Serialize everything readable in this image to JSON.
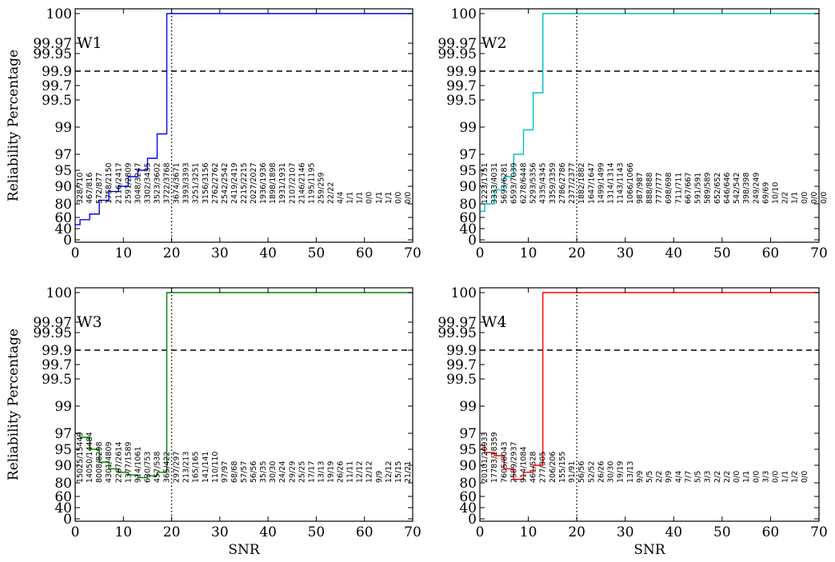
{
  "chart_data": [
    {
      "type": "line",
      "panel": "W1",
      "color": "#0000ff",
      "xlabel": "",
      "ylabel": "Reliability Percentage",
      "xlim": [
        0,
        70
      ],
      "y_scale": "reliability (nonlinear)",
      "x_ticks": [
        "0",
        "10",
        "20",
        "30",
        "40",
        "50",
        "60",
        "70"
      ],
      "y_ticks": [
        "0",
        "40",
        "60",
        "80",
        "90",
        "95",
        "97",
        "99",
        "99.5",
        "99.7",
        "99.9",
        "99.95",
        "99.97",
        "100"
      ],
      "threshold_y": 99.9,
      "threshold_x": 20,
      "x": [
        0,
        1,
        3,
        5,
        7,
        9,
        11,
        13,
        15,
        17,
        19
      ],
      "y": [
        47,
        56,
        65,
        82,
        87,
        90,
        93,
        95,
        96.5,
        98.5,
        100
      ],
      "bin_counts": [
        "328/710",
        "467/816",
        "572/877",
        "1758/2150",
        "2116/2417",
        "2591/2809",
        "3048/3247",
        "3302/3435",
        "3523/3602",
        "3722/3768",
        "3674/3671",
        "3393/3393",
        "3251/3251",
        "3156/3156",
        "2762/2762",
        "2542/2542",
        "2419/2419",
        "2215/2215",
        "2027/2027",
        "1936/1936",
        "1898/1898",
        "1931/1931",
        "2107/2107",
        "2146/2146",
        "1195/1195",
        "259/259",
        "22/22",
        "4/4",
        "1/1",
        "1/1",
        "0/0",
        "1/1",
        "1/1",
        "0/0",
        "0/0"
      ]
    },
    {
      "type": "line",
      "panel": "W2",
      "color": "#00bfbf",
      "xlabel": "",
      "ylabel": "",
      "xlim": [
        0,
        70
      ],
      "y_scale": "reliability (nonlinear)",
      "x_ticks": [
        "0",
        "10",
        "20",
        "30",
        "40",
        "50",
        "60",
        "70"
      ],
      "y_ticks": [
        "0",
        "40",
        "60",
        "80",
        "90",
        "95",
        "97",
        "99",
        "99.5",
        "99.7",
        "99.9",
        "99.95",
        "99.97",
        "100"
      ],
      "threshold_y": 99.9,
      "threshold_x": 20,
      "x": [
        0,
        1,
        3,
        5,
        7,
        9,
        11,
        13
      ],
      "y": [
        69,
        80,
        88,
        93,
        97,
        98.8,
        99.6,
        100
      ],
      "bin_counts": [
        "1223/1751",
        "3333/4031",
        "5693/6281",
        "6593/7039",
        "6278/6448",
        "5293/5356",
        "4335/4345",
        "3359/3359",
        "2786/2786",
        "2377/2377",
        "1882/1882",
        "1647/1647",
        "1499/1499",
        "1314/1314",
        "1143/1143",
        "1066/1066",
        "987/987",
        "888/888",
        "777/777",
        "698/698",
        "711/711",
        "667/667",
        "591/591",
        "589/589",
        "652/652",
        "646/646",
        "542/542",
        "398/398",
        "249/249",
        "69/69",
        "10/10",
        "2/2",
        "1/1",
        "0/0",
        "0/0",
        "0/0"
      ]
    },
    {
      "type": "line",
      "panel": "W3",
      "color": "#008000",
      "xlabel": "SNR",
      "ylabel": "Reliability Percentage",
      "xlim": [
        0,
        70
      ],
      "y_scale": "reliability (nonlinear)",
      "x_ticks": [
        "0",
        "10",
        "20",
        "30",
        "40",
        "50",
        "60",
        "70"
      ],
      "y_ticks": [
        "0",
        "40",
        "60",
        "80",
        "90",
        "95",
        "97",
        "99",
        "99.5",
        "99.7",
        "99.9",
        "99.95",
        "99.97",
        "100"
      ],
      "threshold_y": 99.9,
      "threshold_x": 20,
      "x": [
        0,
        1,
        3,
        5,
        7,
        9,
        11,
        13,
        15,
        17,
        19
      ],
      "y": [
        97,
        96.5,
        95,
        91,
        88,
        86,
        84.5,
        83,
        84,
        86,
        100
      ],
      "bin_counts": [
        "15025/15449",
        "14050/14484",
        "8008/8298",
        "4301/4809",
        "2267/2614",
        "1377/1589",
        "914/1061",
        "630/753",
        "457/538",
        "365/422",
        "297/297",
        "213/213",
        "165/165",
        "141/141",
        "110/110",
        "97/97",
        "68/68",
        "57/57",
        "56/56",
        "35/35",
        "30/30",
        "24/24",
        "29/29",
        "25/25",
        "17/17",
        "13/13",
        "19/19",
        "26/26",
        "11/11",
        "12/12",
        "12/12",
        "9/9",
        "12/12",
        "15/15",
        "21/21"
      ]
    },
    {
      "type": "line",
      "panel": "W4",
      "color": "#ff0000",
      "xlabel": "SNR",
      "ylabel": "",
      "xlim": [
        0,
        70
      ],
      "y_scale": "reliability (nonlinear)",
      "x_ticks": [
        "0",
        "10",
        "20",
        "30",
        "40",
        "50",
        "60",
        "70"
      ],
      "y_ticks": [
        "0",
        "40",
        "60",
        "80",
        "90",
        "95",
        "97",
        "99",
        "99.5",
        "99.7",
        "99.9",
        "99.95",
        "99.97",
        "100"
      ],
      "threshold_y": 99.9,
      "threshold_x": 20,
      "x": [
        0,
        1,
        3,
        5,
        7,
        9,
        11,
        13
      ],
      "y": [
        95.5,
        94,
        93,
        88,
        82,
        86,
        90,
        100
      ],
      "bin_counts": [
        "20101/20933",
        "17783/18359",
        "7605/8043",
        "2589/2937",
        "914/1084",
        "461/528",
        "277/305",
        "206/206",
        "155/155",
        "91/91",
        "56/56",
        "52/52",
        "26/26",
        "30/30",
        "19/19",
        "13/13",
        "9/9",
        "5/5",
        "2/2",
        "9/9",
        "4/4",
        "7/7",
        "5/5",
        "3/3",
        "2/2",
        "2/2",
        "0/0",
        "1/1",
        "0/0",
        "3/3",
        "0/0",
        "1/1",
        "1/2",
        "0/0"
      ]
    }
  ]
}
